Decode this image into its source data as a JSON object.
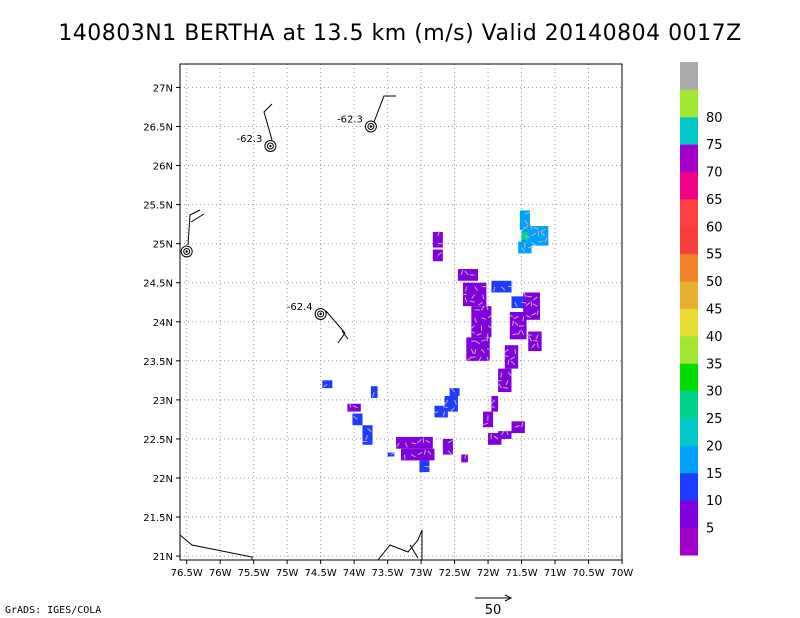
{
  "chart_data": {
    "type": "heatmap",
    "title": "140803N1 BERTHA at 13.5 km (m/s) Valid 20140804 0017Z",
    "xlim": [
      -76.6,
      -70
    ],
    "ylim": [
      20.95,
      27.3
    ],
    "x_ticks": [
      {
        "value": -76.5,
        "label": "76.5W"
      },
      {
        "value": -76,
        "label": "76W"
      },
      {
        "value": -75.5,
        "label": "75.5W"
      },
      {
        "value": -75,
        "label": "75W"
      },
      {
        "value": -74.5,
        "label": "74.5W"
      },
      {
        "value": -74,
        "label": "74W"
      },
      {
        "value": -73.5,
        "label": "73.5W"
      },
      {
        "value": -73,
        "label": "73W"
      },
      {
        "value": -72.5,
        "label": "72.5W"
      },
      {
        "value": -72,
        "label": "72W"
      },
      {
        "value": -71.5,
        "label": "71.5W"
      },
      {
        "value": -71,
        "label": "71W"
      },
      {
        "value": -70.5,
        "label": "70.5W"
      },
      {
        "value": -70,
        "label": "70W"
      }
    ],
    "y_ticks": [
      {
        "value": 21,
        "label": "21N"
      },
      {
        "value": 21.5,
        "label": "21.5N"
      },
      {
        "value": 22,
        "label": "22N"
      },
      {
        "value": 22.5,
        "label": "22.5N"
      },
      {
        "value": 23,
        "label": "23N"
      },
      {
        "value": 23.5,
        "label": "23.5N"
      },
      {
        "value": 24,
        "label": "24N"
      },
      {
        "value": 24.5,
        "label": "24.5N"
      },
      {
        "value": 25,
        "label": "25N"
      },
      {
        "value": 25.5,
        "label": "25.5N"
      },
      {
        "value": 26,
        "label": "26N"
      },
      {
        "value": 26.5,
        "label": "26.5N"
      },
      {
        "value": 27,
        "label": "27N"
      }
    ],
    "grid": true,
    "colorbar": {
      "levels": [
        0,
        5,
        10,
        15,
        20,
        25,
        30,
        35,
        40,
        45,
        50,
        55,
        60,
        65,
        70,
        75,
        80,
        85
      ],
      "labels": [
        "5",
        "10",
        "15",
        "20",
        "25",
        "30",
        "35",
        "40",
        "45",
        "50",
        "55",
        "60",
        "65",
        "70",
        "75",
        "80"
      ],
      "colors": [
        "#a000c8",
        "#8200dc",
        "#1e3cff",
        "#00a0ff",
        "#00c8c8",
        "#00d28c",
        "#00dc00",
        "#a0e632",
        "#e6dc32",
        "#e6af2d",
        "#f08228",
        "#fa3c3c",
        "#ff4040",
        "#f00082",
        "#a000c8",
        "#00c8c8",
        "#a0e632",
        "#aaaaaa"
      ]
    },
    "cells_note": "wind speed in m/s per grid cell",
    "cells": [
      {
        "lon": -72.75,
        "lat": 25.05,
        "w": 0.15,
        "h": 0.2,
        "v": 5
      },
      {
        "lon": -72.75,
        "lat": 24.85,
        "w": 0.15,
        "h": 0.15,
        "v": 5
      },
      {
        "lon": -72.3,
        "lat": 24.6,
        "w": 0.3,
        "h": 0.15,
        "v": 5
      },
      {
        "lon": -72.2,
        "lat": 24.35,
        "w": 0.35,
        "h": 0.3,
        "v": 5
      },
      {
        "lon": -72.1,
        "lat": 24.0,
        "w": 0.3,
        "h": 0.4,
        "v": 5
      },
      {
        "lon": -72.1,
        "lat": 23.65,
        "w": 0.25,
        "h": 0.3,
        "v": 5
      },
      {
        "lon": -72.25,
        "lat": 23.65,
        "w": 0.15,
        "h": 0.3,
        "v": 5
      },
      {
        "lon": -71.8,
        "lat": 24.45,
        "w": 0.3,
        "h": 0.15,
        "v": 10
      },
      {
        "lon": -71.55,
        "lat": 24.25,
        "w": 0.2,
        "h": 0.15,
        "v": 10
      },
      {
        "lon": -71.35,
        "lat": 24.2,
        "w": 0.25,
        "h": 0.35,
        "v": 5
      },
      {
        "lon": -71.55,
        "lat": 23.95,
        "w": 0.25,
        "h": 0.35,
        "v": 5
      },
      {
        "lon": -71.3,
        "lat": 23.75,
        "w": 0.2,
        "h": 0.25,
        "v": 5
      },
      {
        "lon": -71.65,
        "lat": 23.55,
        "w": 0.2,
        "h": 0.3,
        "v": 5
      },
      {
        "lon": -71.75,
        "lat": 23.25,
        "w": 0.2,
        "h": 0.3,
        "v": 5
      },
      {
        "lon": -71.9,
        "lat": 22.95,
        "w": 0.1,
        "h": 0.2,
        "v": 5
      },
      {
        "lon": -72.0,
        "lat": 22.75,
        "w": 0.15,
        "h": 0.2,
        "v": 5
      },
      {
        "lon": -71.45,
        "lat": 25.3,
        "w": 0.15,
        "h": 0.25,
        "v": 15
      },
      {
        "lon": -71.3,
        "lat": 25.1,
        "w": 0.4,
        "h": 0.25,
        "v": 15
      },
      {
        "lon": -71.45,
        "lat": 24.95,
        "w": 0.2,
        "h": 0.15,
        "v": 15
      },
      {
        "lon": -71.45,
        "lat": 25.1,
        "w": 0.1,
        "h": 0.1,
        "v": 25
      },
      {
        "lon": -71.55,
        "lat": 22.65,
        "w": 0.2,
        "h": 0.15,
        "v": 5
      },
      {
        "lon": -71.75,
        "lat": 22.55,
        "w": 0.2,
        "h": 0.1,
        "v": 5
      },
      {
        "lon": -71.9,
        "lat": 22.5,
        "w": 0.2,
        "h": 0.15,
        "v": 5
      },
      {
        "lon": -72.5,
        "lat": 23.1,
        "w": 0.15,
        "h": 0.1,
        "v": 10
      },
      {
        "lon": -72.55,
        "lat": 22.95,
        "w": 0.2,
        "h": 0.2,
        "v": 10
      },
      {
        "lon": -72.7,
        "lat": 22.85,
        "w": 0.2,
        "h": 0.15,
        "v": 10
      },
      {
        "lon": -73.1,
        "lat": 22.45,
        "w": 0.55,
        "h": 0.15,
        "v": 5
      },
      {
        "lon": -73.05,
        "lat": 22.3,
        "w": 0.5,
        "h": 0.15,
        "v": 5
      },
      {
        "lon": -72.6,
        "lat": 22.4,
        "w": 0.15,
        "h": 0.2,
        "v": 5
      },
      {
        "lon": -72.95,
        "lat": 22.15,
        "w": 0.15,
        "h": 0.15,
        "v": 10
      },
      {
        "lon": -73.45,
        "lat": 22.3,
        "w": 0.1,
        "h": 0.05,
        "v": 10
      },
      {
        "lon": -72.35,
        "lat": 22.25,
        "w": 0.1,
        "h": 0.1,
        "v": 5
      },
      {
        "lon": -74.0,
        "lat": 22.9,
        "w": 0.2,
        "h": 0.1,
        "v": 5
      },
      {
        "lon": -73.95,
        "lat": 22.75,
        "w": 0.15,
        "h": 0.15,
        "v": 10
      },
      {
        "lon": -73.8,
        "lat": 22.55,
        "w": 0.15,
        "h": 0.25,
        "v": 10
      },
      {
        "lon": -74.4,
        "lat": 23.2,
        "w": 0.15,
        "h": 0.1,
        "v": 10
      },
      {
        "lon": -73.7,
        "lat": 23.1,
        "w": 0.1,
        "h": 0.15,
        "v": 10
      }
    ],
    "vortex_labels": [
      {
        "label": "-62.3",
        "lon": -75.25,
        "lat": 26.25
      },
      {
        "label": "-62.3",
        "lon": -73.75,
        "lat": 26.5
      },
      {
        "label": "-62.4",
        "lon": -74.5,
        "lat": 24.1
      },
      {
        "label": "",
        "lon": -76.5,
        "lat": 24.9
      }
    ],
    "vector_scale_label": "50",
    "credit": "GrADS: IGES/COLA"
  }
}
